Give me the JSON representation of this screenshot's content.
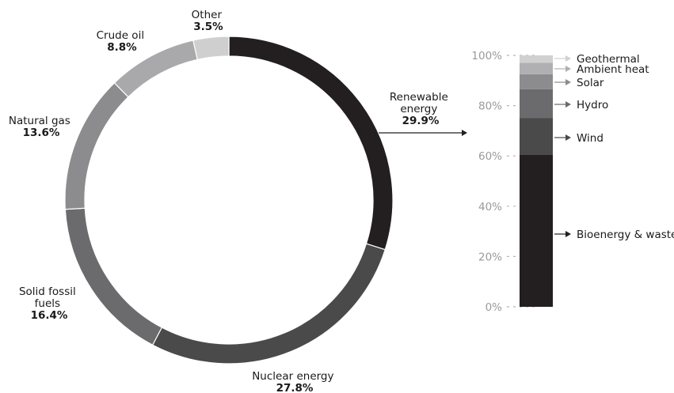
{
  "chart_data": [
    {
      "type": "pie",
      "variant": "donut",
      "slices": [
        {
          "label": "Renewable energy",
          "value": 29.9,
          "value_label": "29.9%",
          "color": "#231f20"
        },
        {
          "label": "Nuclear energy",
          "value": 27.8,
          "value_label": "27.8%",
          "color": "#4a4a4b"
        },
        {
          "label": "Solid fossil fuels",
          "value": 16.4,
          "value_label": "16.4%",
          "color": "#6b6b6d"
        },
        {
          "label": "Natural gas",
          "value": 13.6,
          "value_label": "13.6%",
          "color": "#8c8c8e"
        },
        {
          "label": "Crude oil",
          "value": 8.8,
          "value_label": "8.8%",
          "color": "#a9a9ab"
        },
        {
          "label": "Other",
          "value": 3.5,
          "value_label": "3.5%",
          "color": "#cfcfd0"
        }
      ]
    },
    {
      "type": "bar",
      "variant": "stacked-100",
      "breakdown_of": "Renewable energy",
      "ylim": [
        0,
        100
      ],
      "yticks": [
        "0%",
        "20%",
        "40%",
        "60%",
        "80%",
        "100%"
      ],
      "segments": [
        {
          "label": "Bioenergy & waste",
          "value": 60.5,
          "color": "#231f20"
        },
        {
          "label": "Wind",
          "value": 14.5,
          "color": "#4a4a4b"
        },
        {
          "label": "Hydro",
          "value": 11.5,
          "color": "#6b6b6d"
        },
        {
          "label": "Solar",
          "value": 6.0,
          "color": "#8c8c8e"
        },
        {
          "label": "Ambient heat",
          "value": 4.5,
          "color": "#b0b0b2"
        },
        {
          "label": "Geothermal",
          "value": 3.0,
          "color": "#d0d0d1"
        }
      ]
    }
  ]
}
